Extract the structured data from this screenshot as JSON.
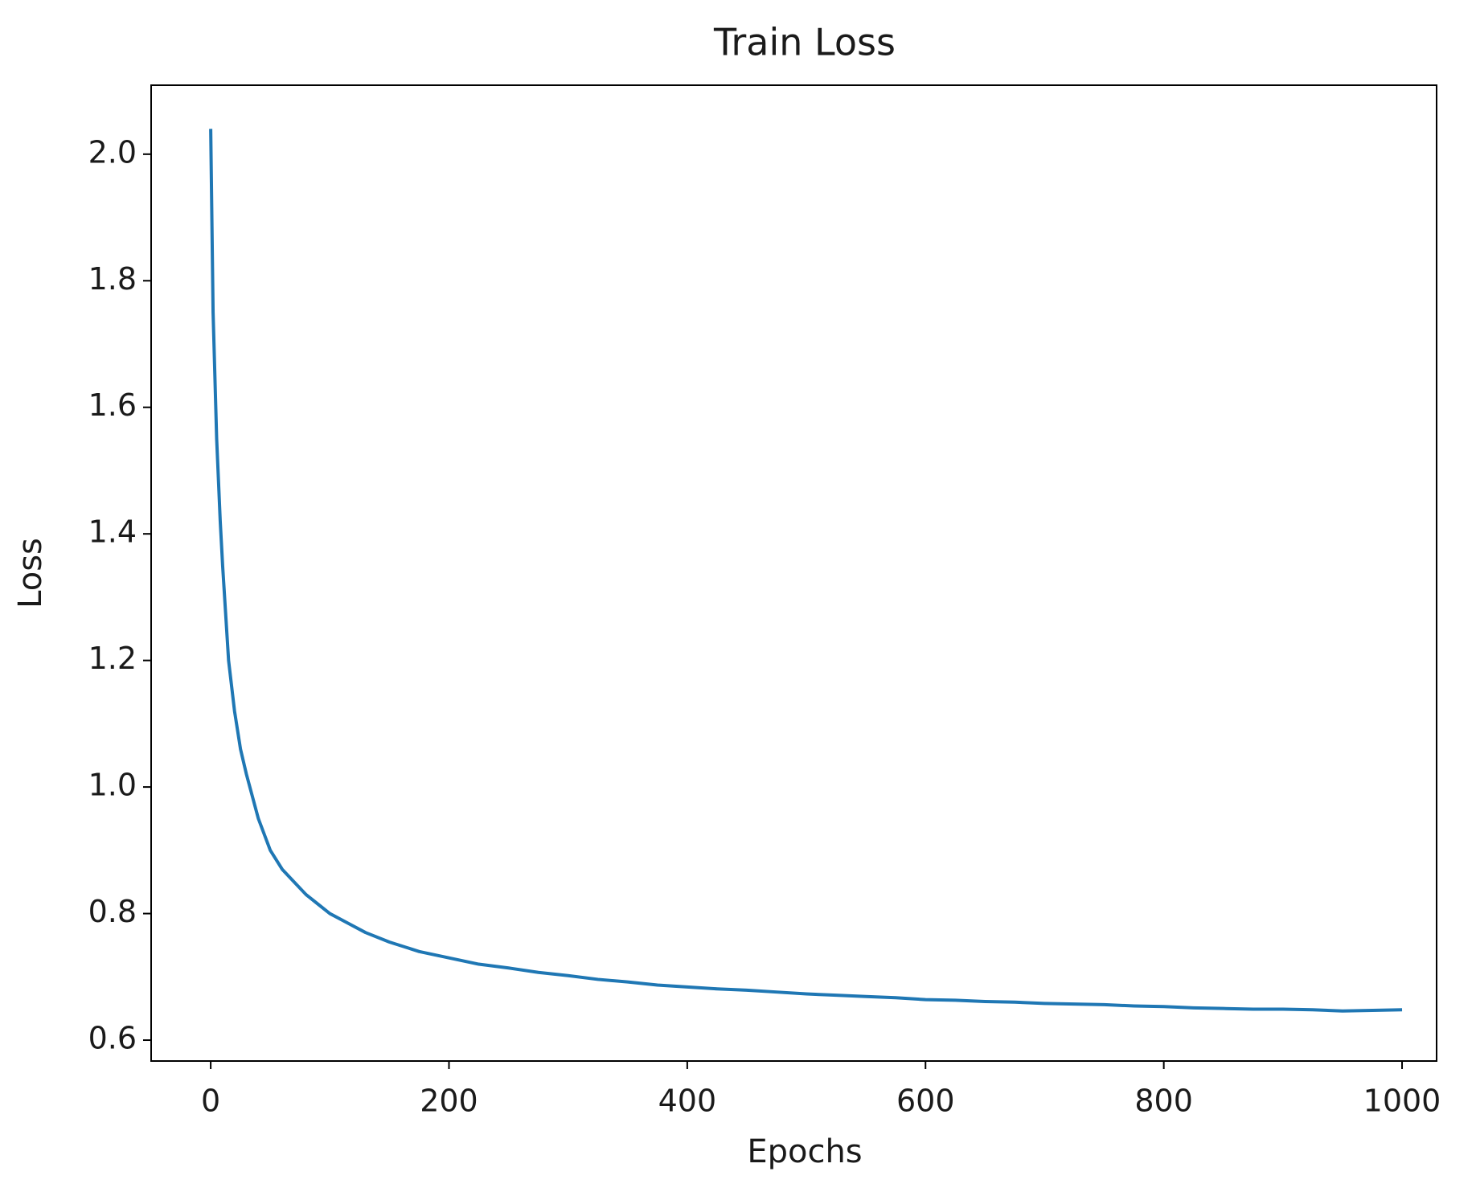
{
  "chart_data": {
    "type": "line",
    "title": "Train Loss",
    "x_label": "Epochs",
    "y_label": "Loss",
    "x": [
      0,
      2,
      5,
      8,
      10,
      15,
      20,
      25,
      30,
      40,
      50,
      60,
      70,
      80,
      90,
      100,
      115,
      130,
      150,
      175,
      200,
      225,
      250,
      275,
      300,
      325,
      350,
      375,
      400,
      425,
      450,
      475,
      500,
      525,
      550,
      575,
      600,
      625,
      650,
      675,
      700,
      725,
      750,
      775,
      800,
      825,
      850,
      875,
      900,
      925,
      950,
      975,
      1000
    ],
    "series": [
      {
        "name": "Train Loss",
        "color": "#1f77b4",
        "values": [
          2.04,
          1.75,
          1.55,
          1.42,
          1.35,
          1.2,
          1.12,
          1.06,
          1.02,
          0.95,
          0.9,
          0.87,
          0.85,
          0.83,
          0.815,
          0.8,
          0.785,
          0.77,
          0.755,
          0.74,
          0.73,
          0.72,
          0.714,
          0.707,
          0.702,
          0.696,
          0.692,
          0.687,
          0.684,
          0.681,
          0.679,
          0.676,
          0.673,
          0.671,
          0.669,
          0.667,
          0.664,
          0.663,
          0.661,
          0.66,
          0.658,
          0.657,
          0.656,
          0.654,
          0.653,
          0.651,
          0.65,
          0.649,
          0.649,
          0.648,
          0.646,
          0.647,
          0.648
        ]
      }
    ],
    "xlim": [
      -50,
      1029
    ],
    "ylim": [
      0.567,
      2.109
    ],
    "xticks": [
      0,
      200,
      400,
      600,
      800,
      1000
    ],
    "yticks": [
      {
        "value": 0.6,
        "label": "0.6"
      },
      {
        "value": 0.8,
        "label": "0.8"
      },
      {
        "value": 1.0,
        "label": "1.0"
      },
      {
        "value": 1.2,
        "label": "1.2"
      },
      {
        "value": 1.4,
        "label": "1.4"
      },
      {
        "value": 1.6,
        "label": "1.6"
      },
      {
        "value": 1.8,
        "label": "1.8"
      },
      {
        "value": 2.0,
        "label": "2.0"
      }
    ],
    "grid": false
  }
}
